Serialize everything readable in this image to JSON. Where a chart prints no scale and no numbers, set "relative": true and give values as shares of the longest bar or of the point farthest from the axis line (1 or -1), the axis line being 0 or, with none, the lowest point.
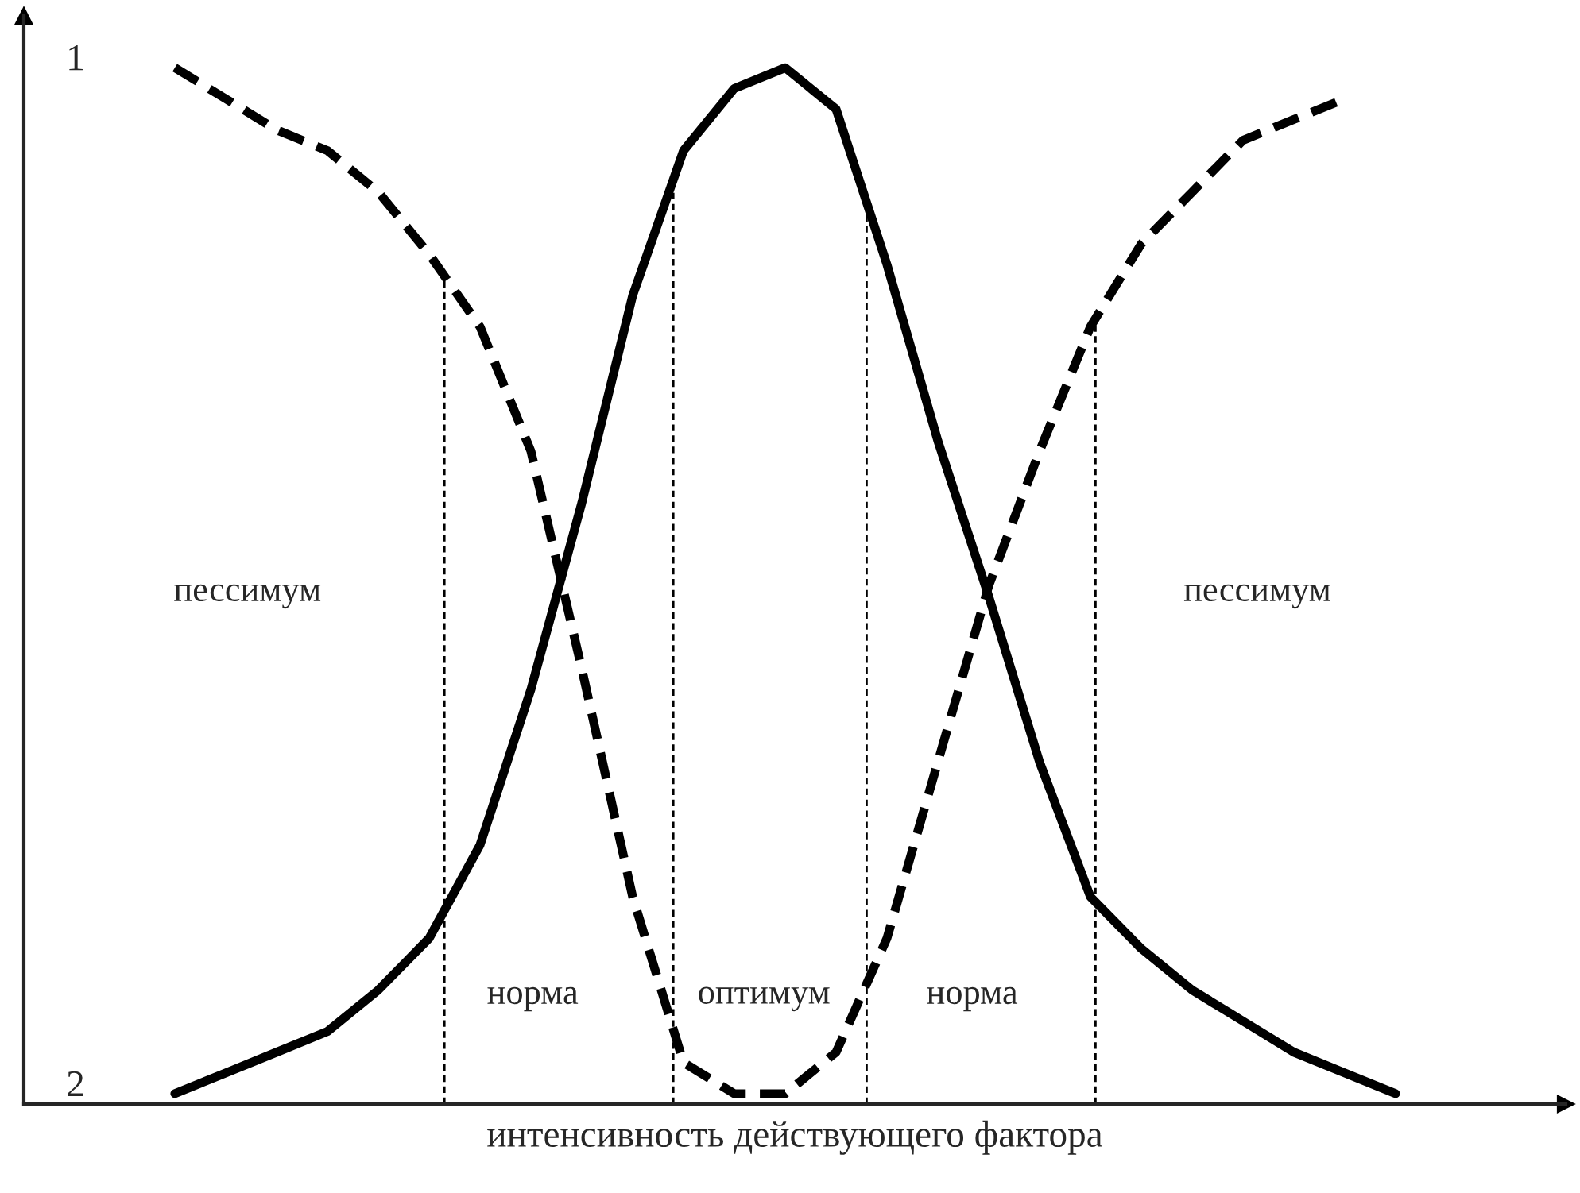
{
  "chart_data": {
    "type": "line",
    "relative": true,
    "xlabel": "интенсивность действующего фактора",
    "categories": [
      null,
      null,
      null,
      null,
      null,
      null,
      null,
      null,
      null,
      null,
      null,
      null,
      null,
      null,
      null,
      null,
      null,
      null,
      null,
      null,
      null,
      null,
      null,
      null,
      null
    ],
    "series": [
      {
        "name": "1",
        "color": "#000000",
        "line_style": "dashed",
        "values": [
          1.0,
          0.97,
          0.94,
          0.92,
          0.88,
          0.82,
          0.75,
          0.63,
          0.42,
          0.2,
          0.04,
          0.01,
          0.01,
          0.05,
          0.16,
          0.33,
          0.5,
          0.63,
          0.75,
          0.83,
          0.88,
          0.93,
          0.95,
          0.97,
          null
        ]
      },
      {
        "name": "2",
        "color": "#000000",
        "line_style": "solid",
        "values": [
          0.01,
          0.03,
          0.05,
          0.07,
          0.11,
          0.16,
          0.25,
          0.4,
          0.58,
          0.78,
          0.92,
          0.98,
          1.0,
          0.96,
          0.81,
          0.64,
          0.49,
          0.33,
          0.2,
          0.15,
          0.11,
          0.08,
          0.05,
          0.03,
          0.01
        ]
      }
    ],
    "annotations": [
      "пессимум",
      "норма",
      "оптимум",
      "норма",
      "пессимум"
    ],
    "marker": "none"
  }
}
